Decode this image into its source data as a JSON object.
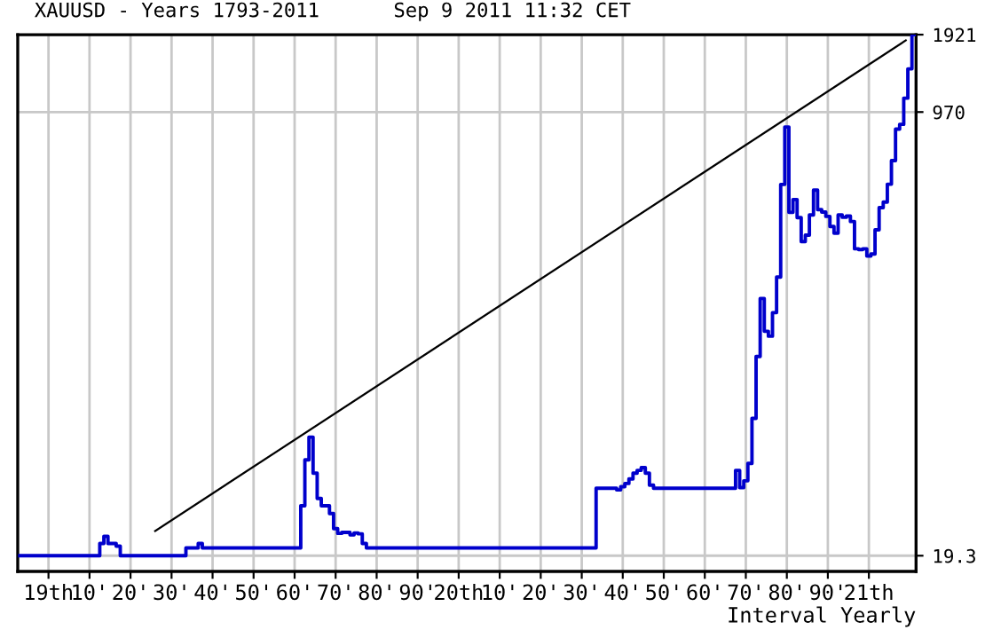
{
  "chart_data": {
    "type": "step",
    "title": "XAUUSD - Years 1793-2011",
    "subtitle": "Sep 9 2011 11:32 CET",
    "annotations": [
      "Interval Yearly"
    ],
    "log": "y",
    "grid": true,
    "ylim": [
      16.8,
      1921
    ],
    "yticks": [
      19.3,
      970,
      1921
    ],
    "categories": [
      null,
      null,
      null,
      null,
      null,
      null,
      null,
      "19th",
      null,
      null,
      null,
      null,
      null,
      null,
      null,
      null,
      null,
      "10'",
      null,
      null,
      null,
      null,
      null,
      null,
      null,
      null,
      null,
      "20'",
      null,
      null,
      null,
      null,
      null,
      null,
      null,
      null,
      null,
      "30'",
      null,
      null,
      null,
      null,
      null,
      null,
      null,
      null,
      null,
      "40'",
      null,
      null,
      null,
      null,
      null,
      null,
      null,
      null,
      null,
      "50'",
      null,
      null,
      null,
      null,
      null,
      null,
      null,
      null,
      null,
      "60'",
      null,
      null,
      null,
      null,
      null,
      null,
      null,
      null,
      null,
      "70'",
      null,
      null,
      null,
      null,
      null,
      null,
      null,
      null,
      null,
      "80'",
      null,
      null,
      null,
      null,
      null,
      null,
      null,
      null,
      null,
      "90'",
      null,
      null,
      null,
      null,
      null,
      null,
      null,
      null,
      null,
      "20th",
      null,
      null,
      null,
      null,
      null,
      null,
      null,
      null,
      null,
      "10'",
      null,
      null,
      null,
      null,
      null,
      null,
      null,
      null,
      null,
      "20'",
      null,
      null,
      null,
      null,
      null,
      null,
      null,
      null,
      null,
      "30'",
      null,
      null,
      null,
      null,
      null,
      null,
      null,
      null,
      null,
      "40'",
      null,
      null,
      null,
      null,
      null,
      null,
      null,
      null,
      null,
      "50'",
      null,
      null,
      null,
      null,
      null,
      null,
      null,
      null,
      null,
      "60'",
      null,
      null,
      null,
      null,
      null,
      null,
      null,
      null,
      null,
      "70'",
      null,
      null,
      null,
      null,
      null,
      null,
      null,
      null,
      null,
      "80'",
      null,
      null,
      null,
      null,
      null,
      null,
      null,
      null,
      null,
      "90'",
      null,
      null,
      null,
      null,
      null,
      null,
      null,
      null,
      null,
      "21th",
      null,
      null,
      null,
      null,
      null,
      null,
      null,
      null,
      null,
      null,
      null
    ],
    "series": [
      {
        "color": "#0000cc",
        "values": [
          19.3,
          19.3,
          19.3,
          19.3,
          19.3,
          19.3,
          19.3,
          19.3,
          19.3,
          19.3,
          19.3,
          19.3,
          19.3,
          19.3,
          19.3,
          19.3,
          19.3,
          19.3,
          19.3,
          19.3,
          21.5,
          22.9,
          21.5,
          21.5,
          21,
          19.3,
          19.3,
          19.3,
          19.3,
          19.3,
          19.3,
          19.3,
          19.3,
          19.3,
          19.3,
          19.3,
          19.3,
          19.3,
          19.3,
          19.3,
          19.3,
          20.67,
          20.67,
          20.67,
          21.5,
          20.67,
          20.67,
          20.67,
          20.67,
          20.67,
          20.67,
          20.67,
          20.67,
          20.67,
          20.67,
          20.67,
          20.67,
          20.67,
          20.67,
          20.67,
          20.67,
          20.67,
          20.67,
          20.67,
          20.67,
          20.67,
          20.67,
          20.67,
          20.67,
          30,
          45,
          55,
          40,
          32,
          30,
          30,
          28,
          24.5,
          23.5,
          23.7,
          23.7,
          23.2,
          23.6,
          23.4,
          21.5,
          20.67,
          20.67,
          20.67,
          20.67,
          20.67,
          20.67,
          20.67,
          20.67,
          20.67,
          20.67,
          20.67,
          20.67,
          20.67,
          20.67,
          20.67,
          20.67,
          20.67,
          20.67,
          20.67,
          20.67,
          20.67,
          20.67,
          20.67,
          20.67,
          20.67,
          20.67,
          20.67,
          20.67,
          20.67,
          20.67,
          20.67,
          20.67,
          20.67,
          20.67,
          20.67,
          20.67,
          20.67,
          20.67,
          20.67,
          20.67,
          20.67,
          20.67,
          20.67,
          20.67,
          20.67,
          20.67,
          20.67,
          20.67,
          20.67,
          20.67,
          20.67,
          20.67,
          20.67,
          20.67,
          20.67,
          20.67,
          35,
          35,
          35,
          35,
          35,
          34.5,
          35.5,
          36.5,
          38,
          40,
          41,
          42,
          40,
          36,
          35,
          35,
          35,
          35,
          35,
          35,
          35,
          35,
          35,
          35,
          35,
          35,
          35,
          35,
          35,
          35,
          35,
          35,
          35,
          35,
          41,
          35.2,
          37.4,
          43.6,
          64.9,
          112,
          187,
          140,
          134,
          165,
          226,
          512,
          850,
          400,
          448,
          382,
          309,
          327,
          391,
          487,
          410,
          401,
          386,
          353,
          333,
          391,
          383,
          387,
          369,
          290,
          288,
          290,
          272,
          277,
          343,
          417,
          438,
          513,
          632,
          834,
          870,
          1096,
          1420,
          1921
        ]
      },
      {
        "type": "line",
        "color": "#000000",
        "values": [
          null,
          null,
          null,
          null,
          null,
          null,
          null,
          null,
          null,
          null,
          null,
          null,
          null,
          null,
          null,
          null,
          null,
          null,
          null,
          null,
          null,
          null,
          null,
          null,
          null,
          null,
          null,
          null,
          null,
          null,
          null,
          null,
          null,
          24,
          null,
          null,
          null,
          null,
          null,
          null,
          null,
          null,
          null,
          null,
          null,
          null,
          null,
          null,
          null,
          null,
          null,
          null,
          null,
          null,
          null,
          null,
          null,
          null,
          null,
          null,
          null,
          null,
          null,
          null,
          null,
          null,
          null,
          null,
          null,
          null,
          null,
          null,
          null,
          null,
          null,
          null,
          null,
          null,
          null,
          null,
          null,
          null,
          null,
          null,
          null,
          null,
          null,
          null,
          null,
          null,
          null,
          null,
          null,
          null,
          null,
          null,
          null,
          null,
          null,
          null,
          null,
          null,
          null,
          null,
          null,
          null,
          null,
          null,
          null,
          null,
          null,
          null,
          null,
          null,
          null,
          null,
          null,
          null,
          null,
          null,
          null,
          null,
          null,
          null,
          null,
          null,
          null,
          null,
          null,
          null,
          null,
          null,
          null,
          null,
          null,
          null,
          null,
          null,
          null,
          null,
          null,
          null,
          null,
          null,
          null,
          null,
          null,
          null,
          null,
          null,
          null,
          null,
          null,
          null,
          null,
          null,
          null,
          null,
          null,
          null,
          null,
          null,
          null,
          null,
          null,
          null,
          null,
          null,
          null,
          null,
          null,
          null,
          null,
          null,
          null,
          null,
          null,
          null,
          null,
          null,
          null,
          null,
          null,
          null,
          null,
          null,
          null,
          null,
          null,
          null,
          null,
          null,
          null,
          null,
          null,
          null,
          null,
          null,
          null,
          null,
          null,
          null,
          null,
          null,
          null,
          null,
          null,
          null,
          null,
          null,
          null,
          null,
          null,
          null,
          null,
          null,
          1826,
          null,
          null
        ]
      }
    ]
  }
}
